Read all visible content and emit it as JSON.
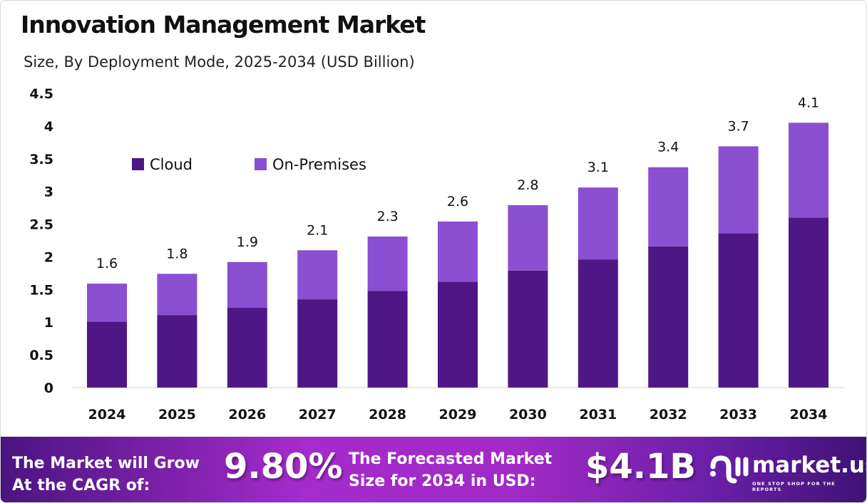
{
  "title": "Innovation Management Market",
  "subtitle": "Size, By Deployment Mode, 2025-2034 (USD Billion)",
  "chart_data": {
    "type": "bar",
    "stacked": true,
    "categories": [
      "2024",
      "2025",
      "2026",
      "2027",
      "2028",
      "2029",
      "2030",
      "2031",
      "2032",
      "2033",
      "2034"
    ],
    "series": [
      {
        "name": "Cloud",
        "color": "#4f1786",
        "values": [
          1.01,
          1.11,
          1.22,
          1.35,
          1.48,
          1.62,
          1.79,
          1.96,
          2.16,
          2.36,
          2.6
        ]
      },
      {
        "name": "On-Premises",
        "color": "#8b4fd1",
        "values": [
          0.58,
          0.63,
          0.7,
          0.75,
          0.83,
          0.92,
          1.0,
          1.1,
          1.21,
          1.33,
          1.45
        ]
      }
    ],
    "totals_labels": [
      "1.6",
      "1.8",
      "1.9",
      "2.1",
      "2.3",
      "2.6",
      "2.8",
      "3.1",
      "3.4",
      "3.7",
      "4.1"
    ],
    "yticks": [
      "0",
      "0.5",
      "1",
      "1.5",
      "2",
      "2.5",
      "3",
      "3.5",
      "4",
      "4.5"
    ],
    "ylim": [
      0,
      4.5
    ],
    "grid": false,
    "legend_position": "top-left"
  },
  "footer": {
    "cagr_text": "The Market will Grow At the CAGR of:",
    "cagr_value": "9.80%",
    "forecast_text": "The Forecasted Market Size for 2034 in USD:",
    "forecast_value": "$4.1B",
    "logo_name": "market.us",
    "logo_tagline": "ONE STOP SHOP FOR THE REPORTS"
  }
}
